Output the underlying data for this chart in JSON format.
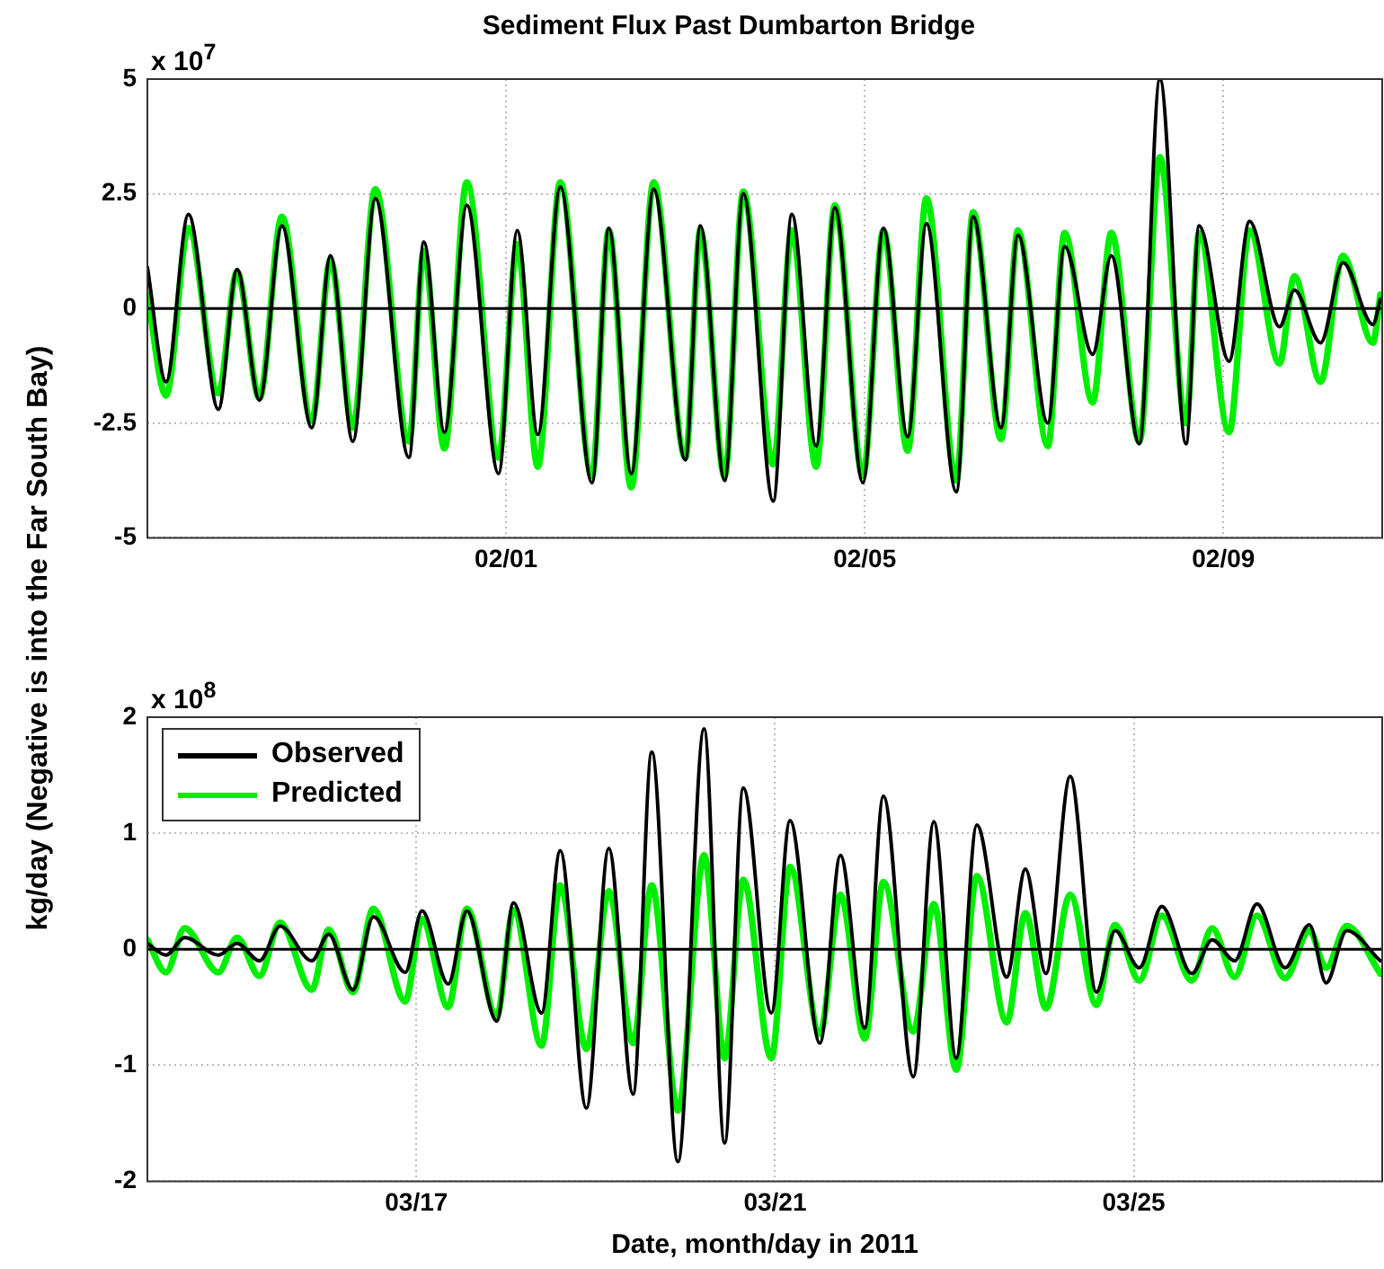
{
  "chart_data": [
    {
      "type": "line",
      "title": "Sediment Flux Past Dumbarton Bridge",
      "ylabel": "kg/day (Negative is into the Far South Bay)",
      "annotations": [
        "x 10$^{7}$"
      ],
      "x": [
        "2011-01-28T00:00",
        "2011-01-28T05:00",
        "2011-01-28T11:00",
        "2011-01-28T19:00",
        "2011-01-29T00:00",
        "2011-01-29T06:00",
        "2011-01-29T12:00",
        "2011-01-29T20:00",
        "2011-01-30T01:00",
        "2011-01-30T07:00",
        "2011-01-30T13:00",
        "2011-01-30T22:00",
        "2011-01-31T02:00",
        "2011-01-31T07:30",
        "2011-01-31T13:30",
        "2011-01-31T22:00",
        "2011-02-01T03:00",
        "2011-02-01T08:30",
        "2011-02-01T14:30",
        "2011-02-01T23:00",
        "2011-02-02T03:30",
        "2011-02-02T09:30",
        "2011-02-02T15:30",
        "2011-02-03T00:00",
        "2011-02-03T04:00",
        "2011-02-03T10:30",
        "2011-02-03T15:30",
        "2011-02-03T23:30",
        "2011-02-04T04:30",
        "2011-02-04T11:00",
        "2011-02-04T16:00",
        "2011-02-04T23:30",
        "2011-02-05T05:00",
        "2011-02-05T11:30",
        "2011-02-05T16:30",
        "2011-02-06T00:30",
        "2011-02-06T05:00",
        "2011-02-06T12:30",
        "2011-02-06T17:00",
        "2011-02-07T01:00",
        "2011-02-07T05:30",
        "2011-02-07T13:00",
        "2011-02-07T18:00",
        "2011-02-08T01:30",
        "2011-02-08T07:00",
        "2011-02-08T14:00",
        "2011-02-08T17:30",
        "2011-02-09T01:30",
        "2011-02-09T07:00",
        "2011-02-09T15:00",
        "2011-02-09T19:00",
        "2011-02-10T02:00",
        "2011-02-10T08:00",
        "2011-02-10T16:00",
        "2011-02-10T18:00"
      ],
      "series": [
        {
          "color": "#000000",
          "values": [
            0.9,
            -1.6,
            2.05,
            -2.2,
            0.85,
            -2.0,
            1.8,
            -2.6,
            1.15,
            -2.9,
            2.4,
            -3.25,
            1.45,
            -2.7,
            2.25,
            -3.6,
            1.7,
            -2.75,
            2.65,
            -3.8,
            1.75,
            -3.6,
            2.6,
            -3.3,
            1.8,
            -3.75,
            2.5,
            -4.2,
            2.05,
            -3.0,
            2.2,
            -3.8,
            1.75,
            -2.8,
            1.85,
            -4.0,
            2.0,
            -2.6,
            1.6,
            -2.5,
            1.35,
            -1.0,
            1.15,
            -2.95,
            5.0,
            -2.95,
            1.8,
            -1.15,
            1.9,
            -0.4,
            0.4,
            -0.75,
            1.0,
            -0.35,
            0.2
          ]
        },
        {
          "color": "#00ee00",
          "values": [
            0.3,
            -1.9,
            1.75,
            -1.85,
            0.8,
            -1.95,
            2.0,
            -2.45,
            1.05,
            -2.6,
            2.6,
            -2.9,
            1.25,
            -3.05,
            2.75,
            -3.25,
            1.4,
            -3.45,
            2.75,
            -3.65,
            1.7,
            -3.9,
            2.75,
            -3.25,
            1.7,
            -3.65,
            2.55,
            -3.4,
            1.7,
            -3.45,
            2.25,
            -3.65,
            1.7,
            -3.1,
            2.4,
            -3.75,
            2.1,
            -2.85,
            1.7,
            -3.0,
            1.65,
            -2.05,
            1.65,
            -2.9,
            3.3,
            -2.5,
            1.65,
            -2.7,
            1.7,
            -1.2,
            0.7,
            -1.6,
            1.15,
            -0.75,
            0.3
          ]
        }
      ],
      "xlim": [
        "2011-01-28T00:00",
        "2011-02-10T18:30"
      ],
      "xticks": [
        {
          "value": "2011-02-01",
          "label": "02/01"
        },
        {
          "value": "2011-02-05",
          "label": "02/05"
        },
        {
          "value": "2011-02-09",
          "label": "02/09"
        }
      ],
      "ylim": [
        -5,
        5
      ],
      "yticks": [
        -5,
        -2.5,
        0,
        2.5,
        5
      ],
      "ref_lines": [
        {
          "axis": "y",
          "value": 0,
          "color": "#000000"
        }
      ],
      "grid": true,
      "legend": false,
      "marker": "none",
      "line_style": "solid"
    },
    {
      "type": "line",
      "xlabel": "Date, month/day in 2011",
      "annotations": [
        "x 10$^{8}$"
      ],
      "x": [
        "2011-03-14T00:00",
        "2011-03-14T05:00",
        "2011-03-14T10:00",
        "2011-03-14T19:00",
        "2011-03-15T00:00",
        "2011-03-15T06:00",
        "2011-03-15T11:30",
        "2011-03-15T20:00",
        "2011-03-16T00:30",
        "2011-03-16T07:00",
        "2011-03-16T12:30",
        "2011-03-16T21:00",
        "2011-03-17T01:30",
        "2011-03-17T08:30",
        "2011-03-17T13:30",
        "2011-03-17T21:30",
        "2011-03-18T02:00",
        "2011-03-18T09:30",
        "2011-03-18T14:30",
        "2011-03-18T21:30",
        "2011-03-19T03:30",
        "2011-03-19T10:00",
        "2011-03-19T15:00",
        "2011-03-19T22:00",
        "2011-03-20T05:00",
        "2011-03-20T10:30",
        "2011-03-20T15:30",
        "2011-03-20T23:00",
        "2011-03-21T04:00",
        "2011-03-21T12:00",
        "2011-03-21T17:30",
        "2011-03-22T00:00",
        "2011-03-22T05:00",
        "2011-03-22T13:00",
        "2011-03-22T18:30",
        "2011-03-23T00:30",
        "2011-03-23T06:00",
        "2011-03-23T14:00",
        "2011-03-23T19:00",
        "2011-03-24T00:30",
        "2011-03-24T07:00",
        "2011-03-24T14:00",
        "2011-03-24T19:00",
        "2011-03-25T01:30",
        "2011-03-25T07:30",
        "2011-03-25T15:30",
        "2011-03-25T21:00",
        "2011-03-26T03:00",
        "2011-03-26T09:00",
        "2011-03-26T16:30",
        "2011-03-26T23:00",
        "2011-03-27T03:30",
        "2011-03-27T09:00",
        "2011-03-27T18:00"
      ],
      "series": [
        {
          "name": "Observed",
          "color": "#000000",
          "values": [
            0.05,
            -0.05,
            0.1,
            -0.05,
            0.05,
            -0.1,
            0.2,
            -0.1,
            0.13,
            -0.35,
            0.28,
            -0.2,
            0.33,
            -0.3,
            0.33,
            -0.62,
            0.4,
            -0.55,
            0.85,
            -1.37,
            0.87,
            -1.25,
            1.7,
            -1.83,
            1.9,
            -1.67,
            1.39,
            -0.55,
            1.11,
            -0.81,
            0.81,
            -0.68,
            1.32,
            -1.1,
            1.1,
            -0.94,
            1.07,
            -0.24,
            0.69,
            -0.21,
            1.49,
            -0.37,
            0.16,
            -0.16,
            0.37,
            -0.21,
            0.08,
            -0.1,
            0.39,
            -0.16,
            0.21,
            -0.29,
            0.16,
            -0.1
          ]
        },
        {
          "name": "Predicted",
          "color": "#00ee00",
          "values": [
            0.08,
            -0.2,
            0.18,
            -0.2,
            0.1,
            -0.23,
            0.23,
            -0.35,
            0.17,
            -0.37,
            0.35,
            -0.45,
            0.26,
            -0.5,
            0.35,
            -0.58,
            0.34,
            -0.83,
            0.55,
            -0.86,
            0.5,
            -0.81,
            0.55,
            -1.39,
            0.81,
            -0.94,
            0.6,
            -0.94,
            0.71,
            -0.73,
            0.47,
            -0.77,
            0.58,
            -0.71,
            0.39,
            -1.04,
            0.63,
            -0.63,
            0.31,
            -0.51,
            0.47,
            -0.48,
            0.21,
            -0.27,
            0.29,
            -0.27,
            0.18,
            -0.24,
            0.29,
            -0.25,
            0.16,
            -0.16,
            0.2,
            -0.21
          ]
        }
      ],
      "xlim": [
        "2011-03-14T00:00",
        "2011-03-27T18:30"
      ],
      "xticks": [
        {
          "value": "2011-03-17",
          "label": "03/17"
        },
        {
          "value": "2011-03-21",
          "label": "03/21"
        },
        {
          "value": "2011-03-25",
          "label": "03/25"
        }
      ],
      "ylim": [
        -2,
        2
      ],
      "yticks": [
        -2,
        -1,
        0,
        1,
        2
      ],
      "ref_lines": [
        {
          "axis": "y",
          "value": 0,
          "color": "#000000"
        }
      ],
      "grid": true,
      "legend": "top left",
      "marker": "none",
      "line_style": "solid"
    }
  ]
}
